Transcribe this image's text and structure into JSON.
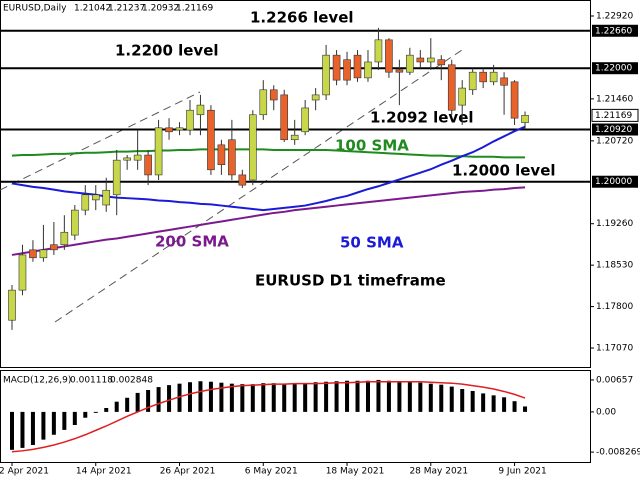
{
  "chart_data": [
    {
      "type": "candlestick",
      "title": "EURUSD,Daily",
      "annotation": "EURUSD D1 timeframe",
      "bull_color": "#c8d64a",
      "bear_color": "#e8622c",
      "categories": [
        "2 Apr 2021",
        null,
        null,
        null,
        null,
        null,
        null,
        null,
        "14 Apr 2021",
        null,
        null,
        null,
        null,
        null,
        null,
        null,
        "26 Apr 2021",
        null,
        null,
        null,
        null,
        null,
        null,
        null,
        "6 May 2021",
        null,
        null,
        null,
        null,
        null,
        null,
        null,
        "18 May 2021",
        null,
        null,
        null,
        null,
        null,
        null,
        null,
        "28 May 2021",
        null,
        null,
        null,
        null,
        null,
        null,
        null,
        "9 Jun 2021",
        null
      ],
      "open": [
        1.1756,
        1.1809,
        1.188,
        1.1866,
        1.1889,
        1.1889,
        1.1906,
        1.195,
        1.1968,
        1.1959,
        1.1977,
        1.2038,
        1.2038,
        1.2047,
        1.2012,
        1.2095,
        1.2091,
        1.2091,
        1.2118,
        1.2126,
        1.2065,
        1.2074,
        1.2012,
        1.2003,
        1.2118,
        1.2162,
        1.2153,
        1.2074,
        1.2088,
        1.2144,
        1.2153,
        1.2223,
        1.2215,
        1.2223,
        1.2183,
        1.2211,
        1.225,
        1.2197,
        1.2193,
        1.2218,
        1.2211,
        1.2215,
        1.2206,
        1.2135,
        1.2162,
        1.2193,
        1.2176,
        1.2183,
        1.2176,
        1.21042
      ],
      "high": [
        1.1818,
        1.1889,
        1.1897,
        1.1924,
        1.1929,
        1.1941,
        1.1959,
        1.1994,
        1.1994,
        1.2007,
        1.2056,
        1.2047,
        1.2091,
        1.2056,
        1.2109,
        1.2112,
        1.2105,
        1.2144,
        1.2153,
        1.2135,
        1.2074,
        1.2109,
        1.2021,
        1.2126,
        1.2179,
        1.217,
        1.2162,
        1.2109,
        1.2144,
        1.2165,
        1.2241,
        1.2232,
        1.2229,
        1.2232,
        1.2232,
        1.2271,
        1.2253,
        1.2215,
        1.2236,
        1.2232,
        1.2253,
        1.2223,
        1.2215,
        1.2179,
        1.22,
        1.22,
        1.2206,
        1.2193,
        1.2179,
        1.21237
      ],
      "low": [
        1.1739,
        1.18,
        1.1859,
        1.1859,
        1.1871,
        1.188,
        1.1897,
        1.1941,
        1.195,
        1.1947,
        1.1941,
        1.2021,
        1.2021,
        1.1994,
        1.2003,
        1.2074,
        1.2082,
        1.2082,
        1.2082,
        1.2012,
        1.2012,
        1.2003,
        1.1989,
        1.1994,
        1.2109,
        1.2126,
        1.207,
        1.2065,
        1.2082,
        1.2126,
        1.2144,
        1.217,
        1.217,
        1.2176,
        1.2176,
        1.2197,
        1.2183,
        1.2135,
        1.2188,
        1.22,
        1.2197,
        1.2179,
        1.2118,
        1.21,
        1.2153,
        1.2165,
        1.217,
        1.2118,
        1.21,
        1.20932
      ],
      "close": [
        1.1809,
        1.1871,
        1.1866,
        1.188,
        1.188,
        1.1911,
        1.195,
        1.1977,
        1.1977,
        1.1985,
        1.2038,
        1.2042,
        1.2047,
        1.2012,
        1.2095,
        1.2088,
        1.2095,
        1.2126,
        1.2135,
        1.2021,
        1.203,
        1.2012,
        1.1994,
        1.2118,
        1.2162,
        1.2144,
        1.2074,
        1.2082,
        1.213,
        1.2153,
        1.2223,
        1.2179,
        1.2179,
        1.2183,
        1.2211,
        1.225,
        1.2193,
        1.2193,
        1.2223,
        1.2211,
        1.2218,
        1.2206,
        1.2126,
        1.2165,
        1.2193,
        1.2176,
        1.2193,
        1.217,
        1.2112,
        1.21169
      ],
      "series": [
        {
          "name": "100 SMA",
          "color": "#1f8a1f",
          "values": [
            1.2046,
            1.2047,
            1.2047,
            1.2048,
            1.2049,
            1.2049,
            1.205,
            1.2051,
            1.2051,
            1.2052,
            1.2053,
            1.2053,
            1.2054,
            1.2054,
            1.2055,
            1.2055,
            1.2056,
            1.2056,
            1.2057,
            1.2057,
            1.2057,
            1.2057,
            1.2057,
            1.2057,
            1.2057,
            1.2056,
            1.2056,
            1.2056,
            1.2056,
            1.2056,
            1.2056,
            1.2055,
            1.2054,
            1.2053,
            1.2052,
            1.2051,
            1.205,
            1.2049,
            1.2048,
            1.2047,
            1.2046,
            1.2046,
            1.2045,
            1.2045,
            1.2044,
            1.2044,
            1.2044,
            1.2043,
            1.2043,
            1.2043
          ]
        },
        {
          "name": "50 SMA",
          "color": "#1a1ad8",
          "values": [
            1.1997,
            1.1994,
            1.1991,
            1.1989,
            1.1986,
            1.1983,
            1.1981,
            1.1979,
            1.1977,
            1.1974,
            1.1972,
            1.1971,
            1.197,
            1.1969,
            1.1967,
            1.1966,
            1.1964,
            1.1963,
            1.1961,
            1.196,
            1.1958,
            1.1956,
            1.1954,
            1.1952,
            1.195,
            1.1952,
            1.1954,
            1.1956,
            1.1958,
            1.1962,
            1.1966,
            1.1971,
            1.1975,
            1.1981,
            1.1987,
            1.1992,
            1.1998,
            1.2004,
            1.201,
            1.2016,
            1.2022,
            1.203,
            1.2037,
            1.2045,
            1.2052,
            1.2061,
            1.2071,
            1.208,
            1.2089,
            1.2097
          ]
        },
        {
          "name": "200 SMA",
          "color": "#7a1a8c",
          "values": [
            1.1871,
            1.1874,
            1.1877,
            1.188,
            1.1883,
            1.1886,
            1.1889,
            1.1892,
            1.1895,
            1.1898,
            1.19,
            1.1903,
            1.1906,
            1.1909,
            1.1912,
            1.1915,
            1.1918,
            1.1921,
            1.1924,
            1.1927,
            1.193,
            1.1933,
            1.1936,
            1.1939,
            1.1942,
            1.1945,
            1.1947,
            1.195,
            1.1952,
            1.1954,
            1.1956,
            1.1958,
            1.196,
            1.1962,
            1.1964,
            1.1966,
            1.1968,
            1.197,
            1.1972,
            1.1974,
            1.1976,
            1.1978,
            1.198,
            1.1982,
            1.1983,
            1.1984,
            1.1986,
            1.1987,
            1.1989,
            1.199
          ]
        }
      ],
      "levels": [
        {
          "value": 1.2266,
          "label": "1.2266 level",
          "axis_label": "1.22660"
        },
        {
          "value": 1.22,
          "label": "1.2200 level",
          "axis_label": "1.22000"
        },
        {
          "value": 1.2092,
          "label": "1.2092 level",
          "axis_label": "1.20920"
        },
        {
          "value": 1.2,
          "label": "1.2000 level",
          "axis_label": "1.20000"
        }
      ],
      "ylim": [
        1.16718,
        1.23061
      ],
      "yticks": [
        {
          "value": 1.2292,
          "label": "1.22920"
        },
        {
          "value": 1.2146,
          "label": "1.21460"
        },
        {
          "value": 1.2072,
          "label": "1.20720"
        },
        {
          "value": 1.1926,
          "label": "1.19260"
        },
        {
          "value": 1.1853,
          "label": "1.18530"
        },
        {
          "value": 1.178,
          "label": "1.17800"
        },
        {
          "value": 1.1707,
          "label": "1.17070"
        }
      ]
    },
    {
      "type": "macd",
      "title": "MACD(12,26,9)",
      "series": [
        {
          "name": "MACD",
          "color": "#000000",
          "values": [
            -0.0078,
            -0.0074,
            -0.0068,
            -0.0057,
            -0.0047,
            -0.0037,
            -0.0027,
            -0.0012,
            -0.0002,
            0.0008,
            0.0021,
            0.0029,
            0.0039,
            0.0045,
            0.0051,
            0.0055,
            0.0058,
            0.0061,
            0.0063,
            0.0062,
            0.006,
            0.0058,
            0.0057,
            0.0057,
            0.0059,
            0.0059,
            0.0058,
            0.0058,
            0.0059,
            0.0061,
            0.0062,
            0.0063,
            0.0064,
            0.0064,
            0.0064,
            0.00657,
            0.0064,
            0.0062,
            0.0061,
            0.006,
            0.0058,
            0.0056,
            0.0052,
            0.0047,
            0.0043,
            0.0038,
            0.0034,
            0.003,
            0.0022,
            0.001118
          ]
        },
        {
          "name": "Signal",
          "color": "#e02020",
          "values": [
            -0.0082,
            -0.008,
            -0.0077,
            -0.0073,
            -0.0068,
            -0.0062,
            -0.0055,
            -0.0047,
            -0.0038,
            -0.0029,
            -0.0019,
            -0.0009,
            0.0,
            0.0009,
            0.0017,
            0.0024,
            0.0031,
            0.0037,
            0.0042,
            0.0046,
            0.0049,
            0.0052,
            0.0054,
            0.0055,
            0.0056,
            0.0057,
            0.0057,
            0.0058,
            0.0058,
            0.0058,
            0.0059,
            0.006,
            0.006,
            0.0061,
            0.0062,
            0.0062,
            0.0062,
            0.0062,
            0.0062,
            0.0062,
            0.0061,
            0.006,
            0.0059,
            0.0057,
            0.0054,
            0.0051,
            0.0047,
            0.0042,
            0.0036,
            0.002848
          ]
        }
      ],
      "ylim": [
        -0.0103,
        0.0082
      ],
      "yticks": [
        0.00657,
        {
          "value": 0,
          "label": "0.00"
        },
        -0.008269
      ]
    }
  ]
}
